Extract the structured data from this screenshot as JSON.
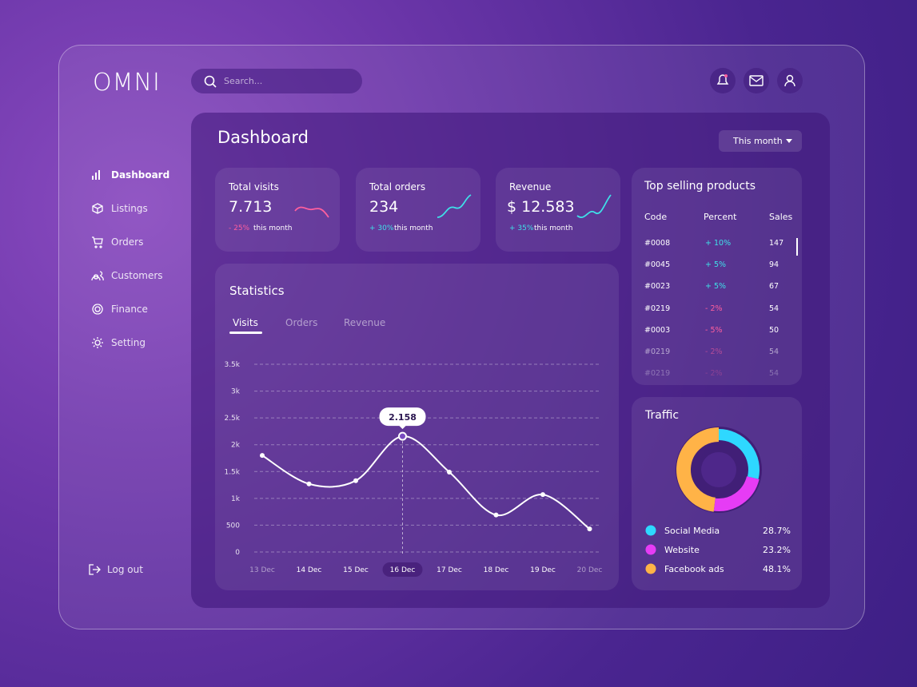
{
  "brand": "OMNI",
  "search": "Search...",
  "nav": [
    "Dashboard",
    "Listings",
    "Orders",
    "Customers",
    "Finance",
    "Setting"
  ],
  "logout": "Log out",
  "dashboard": {
    "title": "Dashboard",
    "period": "This month"
  },
  "kpis": [
    {
      "label": "Total visits",
      "value": "7.713",
      "change": "- 25%",
      "note": "this month"
    },
    {
      "label": "Total orders",
      "value": "234",
      "change": "+ 30%",
      "note": "this month"
    },
    {
      "label": "Revenue",
      "value": "$ 12.583",
      "change": "+ 35%",
      "note": "this month"
    }
  ],
  "products": {
    "title": "Top selling products",
    "columns": [
      "Code",
      "Percent",
      "Sales"
    ],
    "rows": [
      [
        "#0008",
        "+ 10%",
        "147"
      ],
      [
        "#0045",
        "+ 5%",
        "94"
      ],
      [
        "#0023",
        "+ 5%",
        "67"
      ],
      [
        "#0219",
        "- 2%",
        "54"
      ],
      [
        "#0003",
        "- 5%",
        "50"
      ],
      [
        "#0219",
        "- 2%",
        "54"
      ],
      [
        "#0219",
        "- 2%",
        "54"
      ]
    ]
  },
  "chart_data": [
    {
      "type": "line",
      "title": "Statistics",
      "tabs": [
        "Visits",
        "Orders",
        "Revenue"
      ],
      "categories": [
        "13 Dec",
        "14 Dec",
        "15 Dec",
        "16 Dec",
        "17 Dec",
        "18 Dec",
        "19 Dec",
        "20 Dec"
      ],
      "values": [
        1800,
        1270,
        1330,
        2158,
        1490,
        690,
        1070,
        430
      ],
      "value_labels": [
        null,
        null,
        null,
        "2.158",
        null,
        null,
        null,
        null
      ],
      "color": "#ffffff",
      "ylim": [
        0,
        3500
      ],
      "yticks": [
        0,
        500,
        {
          "value": 1000,
          "label": "1k"
        },
        {
          "value": 1500,
          "label": "1.5k"
        },
        {
          "value": 2000,
          "label": "2k"
        },
        {
          "value": 2500,
          "label": "2.5k"
        },
        {
          "value": 3000,
          "label": "3k"
        },
        {
          "value": 3500,
          "label": "3.5k"
        }
      ],
      "grid": true
    },
    {
      "type": "pie",
      "title": "Traffic",
      "categories": [
        "Social Media",
        "Website",
        "Facebook ads"
      ],
      "values": [
        28.7,
        23.2,
        48.1
      ],
      "value_labels": [
        "28.7%",
        "23.2%",
        "48.1%"
      ],
      "colors": [
        "#2ed8ff",
        "#e63cf5",
        "#ffb347"
      ]
    }
  ]
}
